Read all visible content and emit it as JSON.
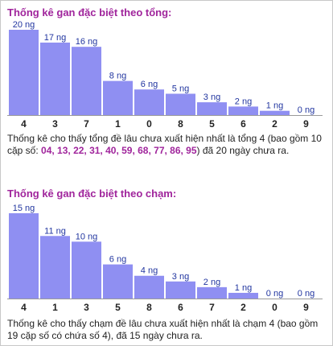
{
  "sections": {
    "tong": {
      "title": "Thống kê gan đặc biệt theo tổng:",
      "desc_before": "Thống kê cho thấy tổng đề lâu chưa xuất hiện nhất là tổng 4 (bao gồm 10 cặp số: ",
      "highlight": "04, 13, 22, 31, 40, 59, 68, 77, 86, 95",
      "desc_after": ") đã 20 ngày chưa ra."
    },
    "cham": {
      "title": "Thống kê gan đặc biệt theo chạm:",
      "desc": "Thống kê cho thấy chạm đề lâu chưa xuất hiện nhất là chạm 4 (bao gồm 19 cặp số có chứa số 4), đã 15 ngày chưa ra."
    }
  },
  "chart_data": [
    {
      "type": "bar",
      "categories": [
        "4",
        "3",
        "7",
        "1",
        "0",
        "8",
        "5",
        "6",
        "2",
        "9"
      ],
      "values": [
        20,
        17,
        16,
        8,
        6,
        5,
        3,
        2,
        1,
        0
      ],
      "value_labels": [
        "20 ng",
        "17 ng",
        "16 ng",
        "8 ng",
        "6 ng",
        "5 ng",
        "3 ng",
        "2 ng",
        "1 ng",
        "0 ng"
      ],
      "ylim": [
        0,
        20
      ],
      "grid": false,
      "bar_color": "#8f8ff2",
      "label_color": "#2236a0"
    },
    {
      "type": "bar",
      "categories": [
        "4",
        "1",
        "3",
        "5",
        "8",
        "6",
        "7",
        "2",
        "0",
        "9"
      ],
      "values": [
        15,
        11,
        10,
        6,
        4,
        3,
        2,
        1,
        0,
        0
      ],
      "value_labels": [
        "15 ng",
        "11 ng",
        "10 ng",
        "6 ng",
        "4 ng",
        "3 ng",
        "2 ng",
        "1 ng",
        "0 ng",
        "0 ng"
      ],
      "ylim": [
        0,
        15
      ],
      "grid": false,
      "bar_color": "#8f8ff2",
      "label_color": "#2236a0"
    }
  ]
}
